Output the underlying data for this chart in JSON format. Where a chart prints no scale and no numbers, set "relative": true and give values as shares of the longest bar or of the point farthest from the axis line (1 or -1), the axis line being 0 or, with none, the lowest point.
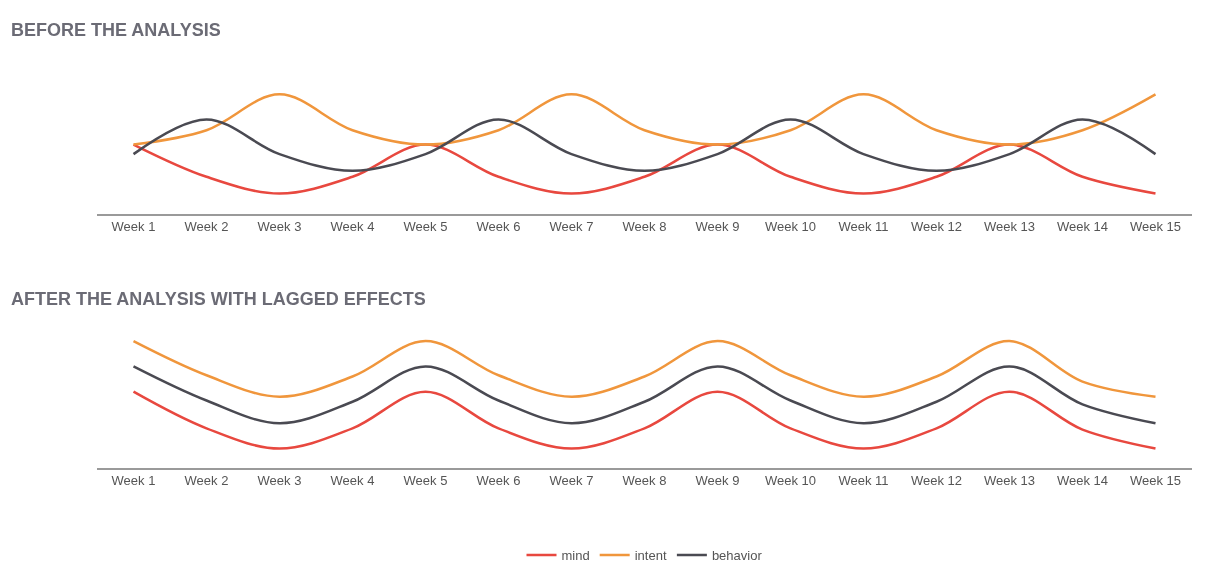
{
  "chart_data": [
    {
      "type": "line",
      "title": "BEFORE THE ANALYSIS",
      "relative": true,
      "categories": [
        "Week 1",
        "Week 2",
        "Week 3",
        "Week 4",
        "Week 5",
        "Week 6",
        "Week 7",
        "Week 8",
        "Week 9",
        "Week 10",
        "Week 11",
        "Week 12",
        "Week 13",
        "Week 14",
        "Week 15"
      ],
      "series": [
        {
          "color": "#e8483f",
          "values": [
            0.58,
            0.31,
            0.17,
            0.31,
            0.58,
            0.31,
            0.17,
            0.31,
            0.58,
            0.31,
            0.17,
            0.31,
            0.58,
            0.31,
            0.17
          ]
        },
        {
          "color": "#f0963c",
          "values": [
            0.58,
            0.7,
            1,
            0.7,
            0.58,
            0.7,
            1,
            0.7,
            0.58,
            0.7,
            1,
            0.7,
            0.58,
            0.7,
            1
          ]
        },
        {
          "color": "#4a4a52",
          "values": [
            0.5,
            0.79,
            0.5,
            0.36,
            0.5,
            0.79,
            0.5,
            0.36,
            0.5,
            0.79,
            0.5,
            0.36,
            0.5,
            0.79,
            0.5
          ]
        }
      ]
    },
    {
      "type": "line",
      "title": "AFTER THE ANALYSIS WITH LAGGED EFFECTS",
      "relative": true,
      "categories": [
        "Week 1",
        "Week 2",
        "Week 3",
        "Week 4",
        "Week 5",
        "Week 6",
        "Week 7",
        "Week 8",
        "Week 9",
        "Week 10",
        "Week 11",
        "Week 12",
        "Week 13",
        "Week 14",
        "Week 15"
      ],
      "legend": "bottom",
      "series": [
        {
          "name": "mind",
          "color": "#e8483f",
          "values": [
            0.6,
            0.31,
            0.15,
            0.31,
            0.6,
            0.31,
            0.15,
            0.31,
            0.6,
            0.31,
            0.15,
            0.31,
            0.6,
            0.3,
            0.15
          ]
        },
        {
          "name": "intent",
          "color": "#f0963c",
          "values": [
            1,
            0.73,
            0.56,
            0.72,
            1,
            0.73,
            0.56,
            0.72,
            1,
            0.73,
            0.56,
            0.72,
            1,
            0.68,
            0.56
          ]
        },
        {
          "name": "behavior",
          "color": "#4a4a52",
          "values": [
            0.8,
            0.53,
            0.35,
            0.52,
            0.8,
            0.53,
            0.35,
            0.52,
            0.8,
            0.53,
            0.35,
            0.52,
            0.8,
            0.5,
            0.35
          ]
        }
      ]
    }
  ]
}
